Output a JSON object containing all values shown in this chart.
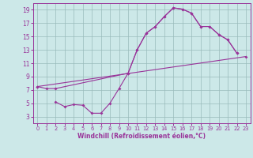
{
  "xlabel": "Windchill (Refroidissement éolien,°C)",
  "xlim": [
    -0.5,
    23.5
  ],
  "ylim": [
    2,
    20
  ],
  "xticks": [
    0,
    1,
    2,
    3,
    4,
    5,
    6,
    7,
    8,
    9,
    10,
    11,
    12,
    13,
    14,
    15,
    16,
    17,
    18,
    19,
    20,
    21,
    22,
    23
  ],
  "yticks": [
    3,
    5,
    7,
    9,
    11,
    13,
    15,
    17,
    19
  ],
  "bg_color": "#cce8e8",
  "line_color": "#993399",
  "grid_color": "#99bbbb",
  "line1_x": [
    0,
    1,
    2,
    10,
    11,
    12,
    13,
    14,
    15,
    16,
    17,
    18,
    19,
    20,
    21,
    22
  ],
  "line1_y": [
    7.5,
    7.2,
    7.2,
    9.5,
    13.0,
    15.5,
    16.5,
    18.0,
    19.3,
    19.1,
    18.5,
    16.5,
    16.5,
    15.3,
    14.5,
    12.5
  ],
  "line2_x": [
    0,
    23
  ],
  "line2_y": [
    7.5,
    12.0
  ],
  "line3_x": [
    2,
    3,
    4,
    5,
    6,
    7,
    8,
    9,
    10,
    11,
    12,
    13,
    14,
    15,
    16,
    17,
    18,
    19,
    20,
    21,
    22
  ],
  "line3_y": [
    5.2,
    4.5,
    4.8,
    4.7,
    3.5,
    3.5,
    5.0,
    7.2,
    9.5,
    13.0,
    15.5,
    16.5,
    18.0,
    19.3,
    19.1,
    18.5,
    16.5,
    16.5,
    15.3,
    14.5,
    12.5
  ],
  "xlabel_fontsize": 5.5,
  "ytick_fontsize": 5.5,
  "xtick_fontsize": 4.8
}
